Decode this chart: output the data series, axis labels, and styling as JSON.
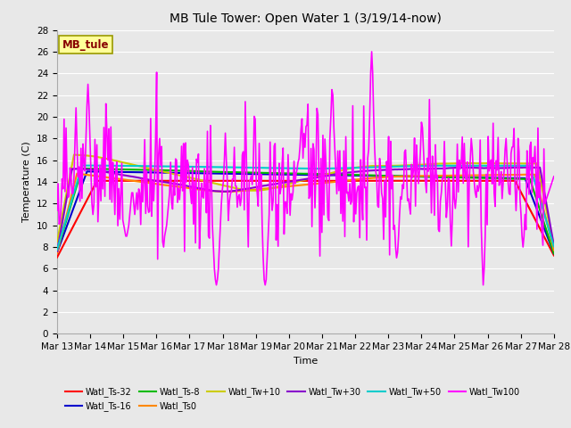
{
  "title": "MB Tule Tower: Open Water 1 (3/19/14-now)",
  "xlabel": "Time",
  "ylabel": "Temperature (C)",
  "ylim": [
    0,
    28
  ],
  "yticks": [
    0,
    2,
    4,
    6,
    8,
    10,
    12,
    14,
    16,
    18,
    20,
    22,
    24,
    26,
    28
  ],
  "xtick_labels": [
    "Mar 13",
    "Mar 14",
    "Mar 15",
    "Mar 16",
    "Mar 17",
    "Mar 18",
    "Mar 19",
    "Mar 20",
    "Mar 21",
    "Mar 22",
    "Mar 23",
    "Mar 24",
    "Mar 25",
    "Mar 26",
    "Mar 27",
    "Mar 28"
  ],
  "background_color": "#e8e8e8",
  "plot_bg_color": "#e8e8e8",
  "grid_color": "#ffffff",
  "legend_label": "MB_tule",
  "legend_box_facecolor": "#ffff99",
  "legend_box_edgecolor": "#999900",
  "legend_text_color": "#880000",
  "series": [
    {
      "label": "Watl_Ts-32",
      "color": "#ff0000"
    },
    {
      "label": "Watl_Ts-16",
      "color": "#0000cc"
    },
    {
      "label": "Watl_Ts-8",
      "color": "#00bb00"
    },
    {
      "label": "Watl_Ts0",
      "color": "#ff8800"
    },
    {
      "label": "Watl_Tw+10",
      "color": "#cccc00"
    },
    {
      "label": "Watl_Tw+30",
      "color": "#8800cc"
    },
    {
      "label": "Watl_Tw+50",
      "color": "#00cccc"
    },
    {
      "label": "Watl_Tw100",
      "color": "#ff00ff"
    }
  ]
}
